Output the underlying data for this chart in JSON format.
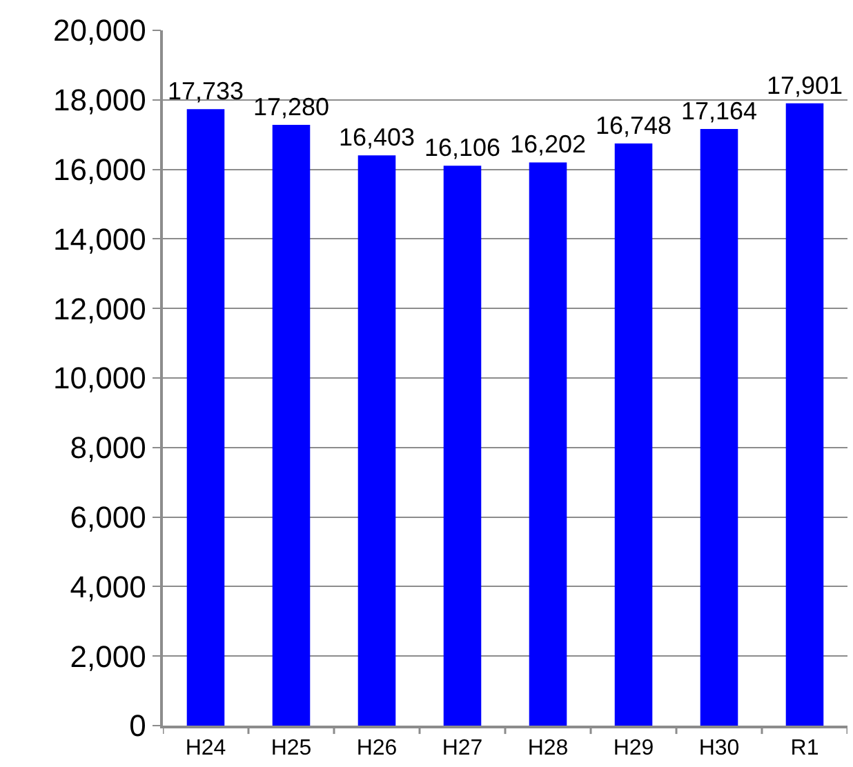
{
  "chart_data": {
    "type": "bar",
    "categories": [
      "H24",
      "H25",
      "H26",
      "H27",
      "H28",
      "H29",
      "H30",
      "R1"
    ],
    "values": [
      17733,
      17280,
      16403,
      16106,
      16202,
      16748,
      17164,
      17901
    ],
    "value_labels": [
      "17,733",
      "17,280",
      "16,403",
      "16,106",
      "16,202",
      "16,748",
      "17,164",
      "17,901"
    ],
    "color": "#0000ff",
    "ylim": [
      0,
      20000
    ],
    "yticks": [
      {
        "value": 0,
        "label": "0"
      },
      {
        "value": 2000,
        "label": "2,000"
      },
      {
        "value": 4000,
        "label": "4,000"
      },
      {
        "value": 6000,
        "label": "6,000"
      },
      {
        "value": 8000,
        "label": "8,000"
      },
      {
        "value": 10000,
        "label": "10,000"
      },
      {
        "value": 12000,
        "label": "12,000"
      },
      {
        "value": 14000,
        "label": "14,000"
      },
      {
        "value": 16000,
        "label": "16,000"
      },
      {
        "value": 18000,
        "label": "18,000"
      },
      {
        "value": 20000,
        "label": "20,000"
      }
    ],
    "grid": "y"
  }
}
